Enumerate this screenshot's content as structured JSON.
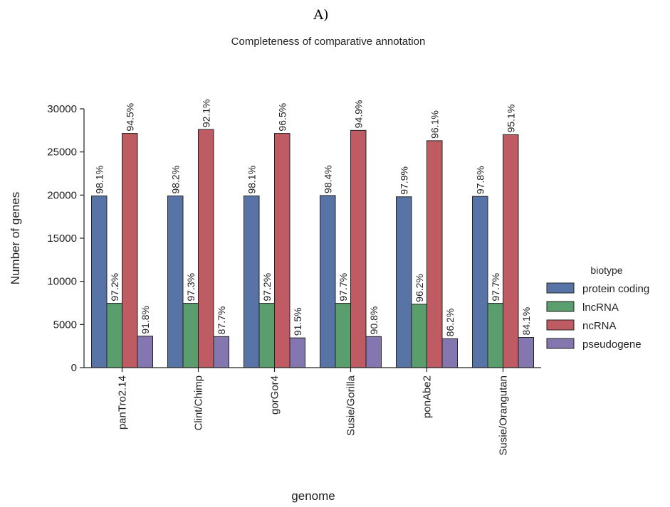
{
  "panel_label": "A)",
  "chart_data": {
    "type": "bar",
    "title": "Completeness of comparative annotation",
    "xlabel": "genome",
    "ylabel": "Number of genes",
    "ylim": [
      0,
      30000
    ],
    "yticks": [
      0,
      5000,
      10000,
      15000,
      20000,
      25000,
      30000
    ],
    "categories": [
      "panTro2.14",
      "Clint/Chimp",
      "gorGor4",
      "Susie/Gorilla",
      "ponAbe2",
      "Susie/Orangutan"
    ],
    "legend_title": "biotype",
    "legend_position": "right",
    "series": [
      {
        "name": "protein coding",
        "color": "#5874a6",
        "values": [
          19900,
          19900,
          19900,
          19950,
          19800,
          19850
        ],
        "labels": [
          "98.1%",
          "98.2%",
          "98.1%",
          "98.4%",
          "97.9%",
          "97.8%"
        ]
      },
      {
        "name": "lncRNA",
        "color": "#5a9e6d",
        "values": [
          7450,
          7450,
          7450,
          7450,
          7350,
          7450
        ],
        "labels": [
          "97.2%",
          "97.3%",
          "97.2%",
          "97.7%",
          "96.2%",
          "97.7%"
        ]
      },
      {
        "name": "ncRNA",
        "color": "#bf5b63",
        "values": [
          27150,
          27600,
          27150,
          27500,
          26300,
          27000
        ],
        "labels": [
          "94.5%",
          "92.1%",
          "96.5%",
          "94.9%",
          "96.1%",
          "95.1%"
        ]
      },
      {
        "name": "pseudogene",
        "color": "#8477b0",
        "values": [
          3650,
          3600,
          3450,
          3600,
          3350,
          3500
        ],
        "labels": [
          "91.8%",
          "87.7%",
          "91.5%",
          "90.8%",
          "86.2%",
          "84.1%"
        ]
      }
    ]
  }
}
